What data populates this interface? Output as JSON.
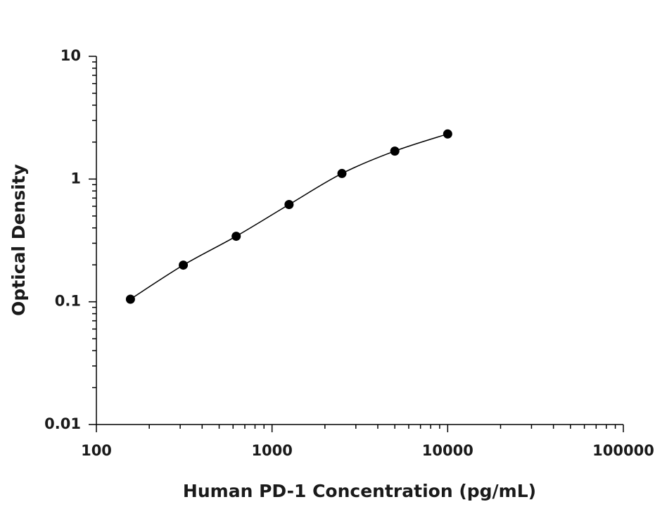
{
  "chart_data": {
    "type": "scatter",
    "x_label": "Human PD-1 Concentration (pg/mL)",
    "y_label": "Optical Density",
    "x_log": true,
    "y_log": true,
    "xlim": [
      100,
      100000
    ],
    "xticks": [
      100,
      1000,
      10000,
      100000
    ],
    "ylim": [
      0.01,
      10
    ],
    "yticks": [
      0.01,
      0.1,
      1,
      10
    ],
    "series": [
      {
        "color": "#000000",
        "x": [
          156.25,
          312.5,
          625,
          1250,
          2500,
          5000,
          10000
        ],
        "values": [
          0.105,
          0.199,
          0.342,
          0.62,
          1.11,
          1.69,
          2.33
        ]
      }
    ]
  }
}
